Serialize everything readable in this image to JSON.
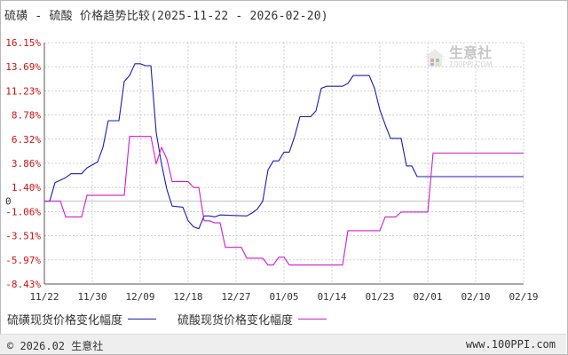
{
  "title": "硫磺 - 硫酸 价格趋势比较(2025-11-22 - 2026-02-20)",
  "watermark": {
    "name": "生意社",
    "url": "100PPI.COM"
  },
  "footer": {
    "left": "© 2026.02 生意社",
    "right": "www.100PPI.com"
  },
  "colors": {
    "series1": "#1b1bb8",
    "series2": "#d11ad1",
    "ytick": "#cc1111",
    "grid": "#cfcfcf",
    "axis": "#555555"
  },
  "chart_data": {
    "type": "line",
    "xlabel": "",
    "ylabel": "",
    "x_ticks": [
      "11/22",
      "11/30",
      "12/09",
      "12/18",
      "12/27",
      "01/05",
      "01/14",
      "01/23",
      "02/01",
      "02/10",
      "02/19"
    ],
    "y_ticks": [
      "16.15%",
      "13.69%",
      "11.23%",
      "8.78%",
      "6.32%",
      "3.86%",
      "1.40%",
      "-1.06%",
      "-3.51%",
      "-5.97%",
      "-8.43%"
    ],
    "y_tick_values": [
      16.15,
      13.69,
      11.23,
      8.78,
      6.32,
      3.86,
      1.4,
      -1.06,
      -3.51,
      -5.97,
      -8.43
    ],
    "zero_label": "0",
    "ylim": [
      -8.43,
      16.15
    ],
    "x_range_days": [
      0,
      90
    ],
    "grid": true,
    "legend_position": "bottom",
    "series": [
      {
        "name": "硫磺现货价格变化幅度",
        "points": [
          [
            0,
            0
          ],
          [
            1,
            0
          ],
          [
            2,
            1.9
          ],
          [
            4,
            2.4
          ],
          [
            5,
            2.8
          ],
          [
            7,
            2.8
          ],
          [
            8,
            3.4
          ],
          [
            10,
            4
          ],
          [
            11,
            5.5
          ],
          [
            12,
            8.2
          ],
          [
            14,
            8.2
          ],
          [
            15,
            12.2
          ],
          [
            16,
            12.8
          ],
          [
            17,
            14
          ],
          [
            18,
            14
          ],
          [
            19,
            13.8
          ],
          [
            20,
            13.8
          ],
          [
            21,
            7
          ],
          [
            22,
            3.8
          ],
          [
            23,
            1.2
          ],
          [
            24,
            -0.5
          ],
          [
            26,
            -0.6
          ],
          [
            27,
            -2
          ],
          [
            28,
            -2.6
          ],
          [
            29,
            -2.8
          ],
          [
            30,
            -1.5
          ],
          [
            31,
            -1.5
          ],
          [
            32,
            -1.6
          ],
          [
            33,
            -1.4
          ],
          [
            38,
            -1.5
          ],
          [
            39,
            -1.2
          ],
          [
            40,
            -0.8
          ],
          [
            41,
            0
          ],
          [
            42,
            3.2
          ],
          [
            43,
            4.1
          ],
          [
            44,
            4.1
          ],
          [
            45,
            5
          ],
          [
            46,
            5
          ],
          [
            47,
            6.6
          ],
          [
            48,
            8.6
          ],
          [
            50,
            8.6
          ],
          [
            51,
            9.2
          ],
          [
            52,
            11.5
          ],
          [
            53,
            11.7
          ],
          [
            56,
            11.7
          ],
          [
            57,
            12
          ],
          [
            58,
            12.8
          ],
          [
            61,
            12.8
          ],
          [
            62,
            11.5
          ],
          [
            63,
            9.3
          ],
          [
            64,
            7.8
          ],
          [
            65,
            6.4
          ],
          [
            67,
            6.4
          ],
          [
            68,
            3.6
          ],
          [
            69,
            3.6
          ],
          [
            70,
            2.5
          ],
          [
            90,
            2.5
          ]
        ]
      },
      {
        "name": "硫酸现货价格变化幅度",
        "points": [
          [
            0,
            0
          ],
          [
            3,
            0
          ],
          [
            4,
            -1.6
          ],
          [
            7,
            -1.6
          ],
          [
            8,
            0.6
          ],
          [
            15,
            0.6
          ],
          [
            16,
            6.6
          ],
          [
            20,
            6.6
          ],
          [
            21,
            3.8
          ],
          [
            22,
            5.5
          ],
          [
            23,
            4.3
          ],
          [
            24,
            2
          ],
          [
            27,
            2
          ],
          [
            28,
            1.4
          ],
          [
            29,
            1.4
          ],
          [
            30,
            -2
          ],
          [
            31,
            -2
          ],
          [
            32,
            -2.2
          ],
          [
            33,
            -2.2
          ],
          [
            34,
            -4.7
          ],
          [
            37,
            -4.7
          ],
          [
            38,
            -5.8
          ],
          [
            41,
            -5.8
          ],
          [
            42,
            -6.5
          ],
          [
            43,
            -6.5
          ],
          [
            44,
            -5.7
          ],
          [
            45,
            -5.7
          ],
          [
            46,
            -6.5
          ],
          [
            56,
            -6.5
          ],
          [
            57,
            -3
          ],
          [
            63,
            -3
          ],
          [
            64,
            -1.6
          ],
          [
            66,
            -1.6
          ],
          [
            67,
            -1.1
          ],
          [
            72,
            -1.1
          ],
          [
            73,
            4.9
          ],
          [
            81,
            4.9
          ],
          [
            90,
            4.9
          ]
        ]
      }
    ]
  }
}
